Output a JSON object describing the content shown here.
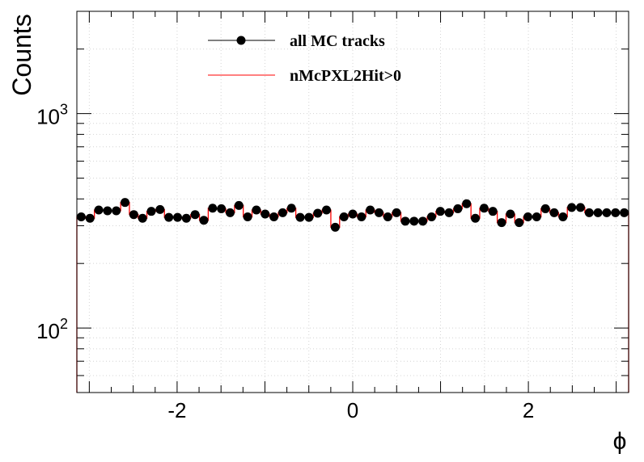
{
  "chart_data": {
    "type": "line",
    "xlabel": "ϕ",
    "ylabel": "Counts",
    "xlim": [
      -3.1416,
      3.1416
    ],
    "ylim": [
      50,
      3000
    ],
    "yscale": "log",
    "grid": true,
    "legend_position": "top",
    "x_ticks": [
      -2,
      0,
      2
    ],
    "x_tick_labels": [
      "-2",
      "0",
      "2"
    ],
    "y_ticks": [
      100,
      1000
    ],
    "y_tick_labels": [
      {
        "base": "10",
        "exp": "2"
      },
      {
        "base": "10",
        "exp": "3"
      }
    ],
    "bins": 63,
    "series": [
      {
        "name": "all MC tracks",
        "style": "markers",
        "color": "#000000",
        "values": [
          330,
          325,
          355,
          352,
          352,
          385,
          338,
          325,
          350,
          357,
          328,
          328,
          325,
          338,
          318,
          362,
          360,
          345,
          373,
          330,
          355,
          340,
          330,
          345,
          362,
          328,
          328,
          343,
          355,
          295,
          330,
          340,
          330,
          355,
          345,
          330,
          345,
          315,
          315,
          315,
          330,
          350,
          345,
          360,
          380,
          325,
          362,
          350,
          310,
          340,
          310,
          330,
          330,
          360,
          345,
          330,
          365,
          365,
          345,
          345,
          345,
          345,
          345
        ]
      },
      {
        "name": "nMcPXL2Hit>0",
        "style": "step",
        "color": "#ff0000",
        "values": [
          330,
          325,
          355,
          352,
          352,
          385,
          338,
          325,
          350,
          357,
          328,
          328,
          325,
          338,
          318,
          362,
          360,
          345,
          373,
          330,
          355,
          340,
          330,
          345,
          362,
          328,
          328,
          343,
          355,
          295,
          330,
          340,
          330,
          355,
          345,
          330,
          345,
          315,
          315,
          315,
          330,
          350,
          345,
          360,
          380,
          325,
          362,
          350,
          310,
          340,
          310,
          330,
          330,
          360,
          345,
          330,
          365,
          365,
          345,
          345,
          345,
          345,
          345
        ]
      }
    ]
  }
}
